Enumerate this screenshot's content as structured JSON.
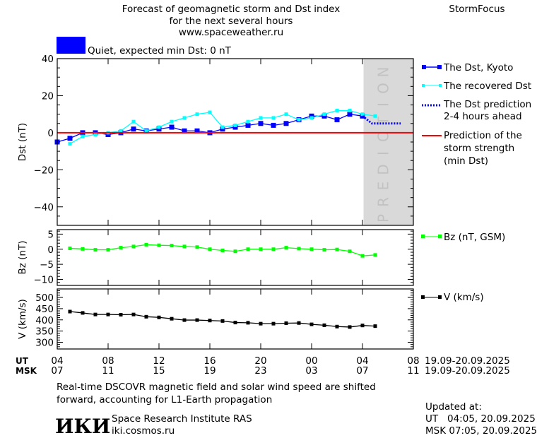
{
  "header": {
    "title_lines": [
      "Forecast of geomagnetic storm and Dst index",
      "for the next several hours",
      "www.spaceweather.ru"
    ],
    "brand": "StormFocus",
    "status_text": "Quiet, expected min Dst: 0 nT",
    "status_color": "#0000ff"
  },
  "legend": {
    "dst_kyoto": "The Dst, Kyoto",
    "dst_recovered": "The recovered Dst",
    "dst_prediction": [
      "The Dst prediction",
      "2-4 hours ahead"
    ],
    "storm_strength": [
      "Prediction of the",
      "storm strength",
      "(min Dst)"
    ],
    "bz": "Bz (nT, GSM)",
    "v": "V (km/s)"
  },
  "prediction_label": "PREDICTION",
  "time_axis": {
    "ut_label": "UT",
    "msk_label": "MSK",
    "ut_ticks": [
      "04",
      "08",
      "12",
      "16",
      "20",
      "00",
      "04",
      "08"
    ],
    "msk_ticks": [
      "07",
      "11",
      "15",
      "19",
      "23",
      "03",
      "07",
      "11"
    ],
    "ut_dates": "19.09-20.09.2025",
    "msk_dates": "19.09-20.09.2025"
  },
  "colors": {
    "dst": "#0000ff",
    "recovered": "#00ffff",
    "prediction": "#0000ff",
    "storm": "#ff0000",
    "bz": "#00ff00",
    "v": "#000000",
    "prediction_band": "#d9d9d9"
  },
  "chart_data": [
    {
      "type": "line",
      "ylabel": "Dst (nT)",
      "ylim": [
        -50,
        40
      ],
      "yticks": [
        -40,
        -20,
        0,
        20,
        40
      ],
      "xlim": [
        "19.09 04:00",
        "20.09 08:00"
      ],
      "prediction_region": [
        "20.09 04:05",
        "20.09 08:00"
      ],
      "series": [
        {
          "name": "The Dst, Kyoto",
          "start": "19.09 04:00",
          "step_hours": 1,
          "values": [
            -5,
            -3,
            0,
            0,
            -1,
            0,
            2,
            1,
            2,
            3,
            1,
            1,
            0,
            2,
            3,
            4,
            5,
            4,
            5,
            7,
            9,
            9,
            7,
            10,
            9
          ]
        },
        {
          "name": "The recovered Dst",
          "start": "19.09 05:00",
          "step_hours": 1,
          "values": [
            -6,
            -2,
            -1,
            0,
            1,
            6,
            1,
            3,
            6,
            8,
            10,
            11,
            3,
            4,
            6,
            8,
            8,
            10,
            7,
            8,
            10,
            12,
            12,
            10,
            9
          ]
        },
        {
          "name": "The Dst prediction 2-4 hours ahead",
          "x": [
            "20.09 04:00",
            "20.09 04:45",
            "20.09 07:00"
          ],
          "values": [
            9,
            5,
            5
          ]
        },
        {
          "name": "Prediction of the storm strength (min Dst)",
          "values": [
            0
          ]
        }
      ]
    },
    {
      "type": "line",
      "ylabel": "Bz (nT)",
      "ylim": [
        -12,
        6.5
      ],
      "yticks": [
        -10,
        -5,
        0,
        5
      ],
      "series": [
        {
          "name": "Bz (nT, GSM)",
          "start": "19.09 05:00",
          "step_hours": 1,
          "values": [
            0.3,
            0.1,
            -0.2,
            -0.2,
            0.5,
            0.9,
            1.5,
            1.3,
            1.2,
            0.9,
            0.7,
            0,
            -0.4,
            -0.7,
            0,
            0,
            0,
            0.5,
            0.2,
            0,
            -0.2,
            -0.1,
            -0.7,
            -2.2,
            -1.9
          ]
        }
      ]
    },
    {
      "type": "line",
      "ylabel": "V (km/s)",
      "ylim": [
        270,
        538
      ],
      "yticks": [
        300,
        350,
        400,
        450,
        500
      ],
      "series": [
        {
          "name": "V (km/s)",
          "start": "19.09 05:00",
          "step_hours": 1,
          "values": [
            437,
            431,
            424,
            424,
            423,
            424,
            414,
            411,
            405,
            399,
            399,
            397,
            395,
            388,
            387,
            383,
            383,
            385,
            386,
            380,
            376,
            370,
            368,
            375,
            372
          ]
        }
      ]
    }
  ],
  "footer": {
    "note_lines": [
      "Real-time DSCOVR magnetic field and solar wind speed are shifted",
      "forward, accounting for L1-Earth propagation"
    ],
    "logo": "ИКИ",
    "institute": "Space Research Institute RAS",
    "site": "iki.cosmos.ru",
    "updated_label": "Updated at:",
    "updated_ut": "UT   04:05, 20.09.2025",
    "updated_msk": "MSK 07:05, 20.09.2025"
  }
}
